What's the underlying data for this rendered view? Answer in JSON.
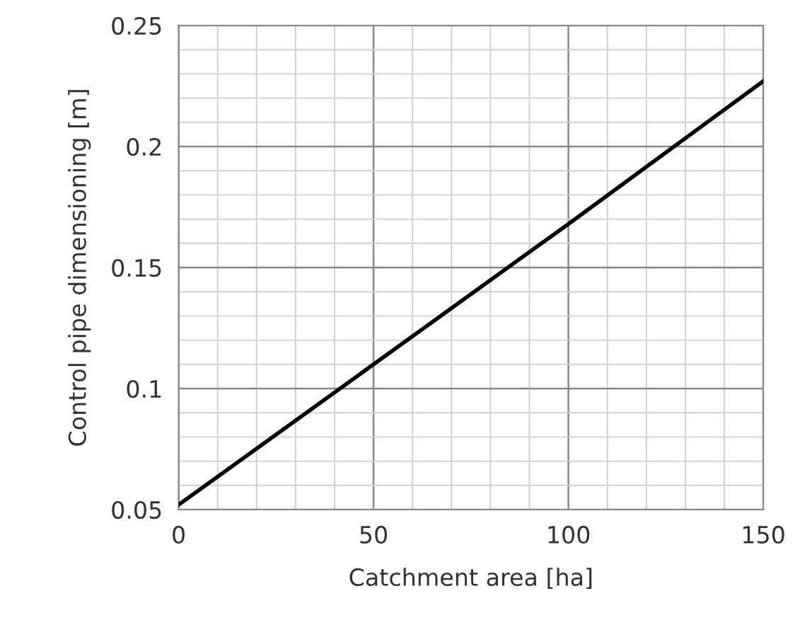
{
  "chart_data": {
    "type": "line",
    "xlabel": "Catchment area [ha]",
    "ylabel": "Control pipe dimensioning [m]",
    "x": [
      0,
      50,
      100,
      150
    ],
    "series": [
      {
        "color": "#000000",
        "values": [
          0.052,
          0.11,
          0.168,
          0.227
        ]
      }
    ],
    "xlim": [
      0,
      150
    ],
    "xticks": [
      0,
      50,
      100,
      150
    ],
    "ylim": [
      0.05,
      0.25
    ],
    "yticks": [
      0.05,
      0.1,
      0.15,
      0.2,
      0.25
    ],
    "grid": true,
    "marker": "none",
    "line_style": "solid"
  }
}
